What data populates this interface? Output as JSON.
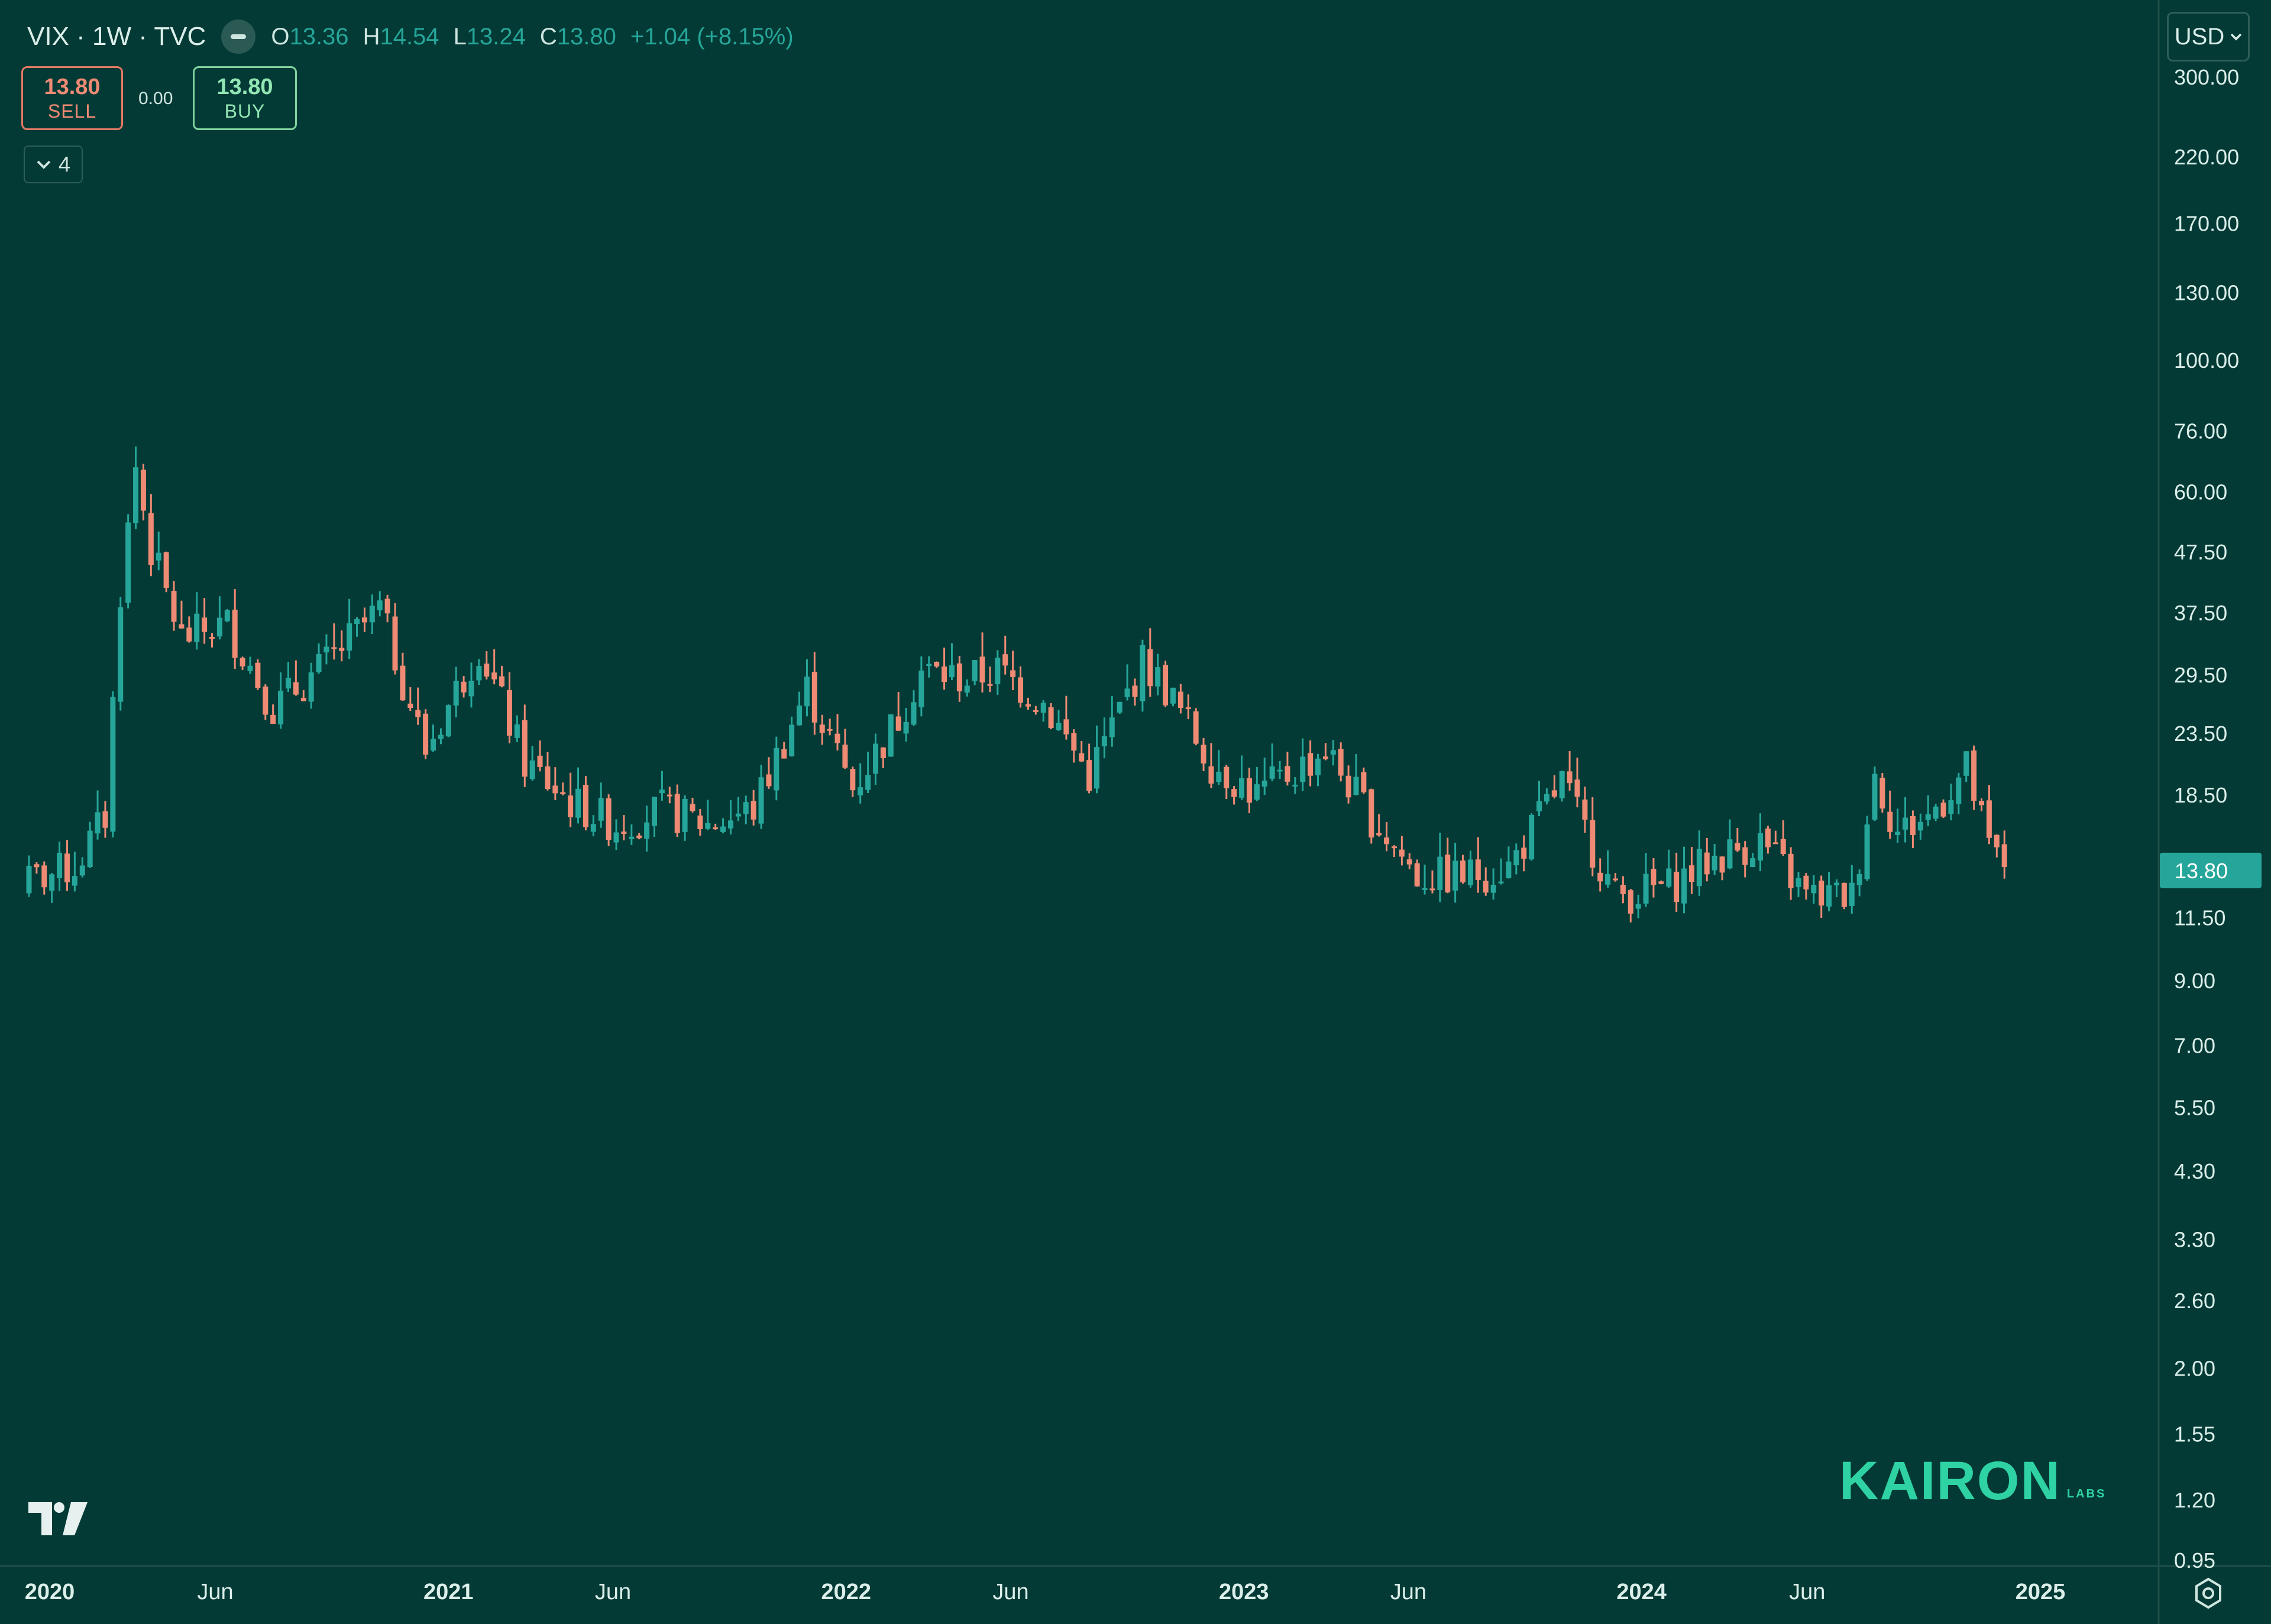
{
  "header": {
    "symbol": "VIX · 1W · TVC",
    "ohlc": {
      "o_label": "O",
      "o_value": "13.36",
      "h_label": "H",
      "h_value": "14.54",
      "l_label": "L",
      "l_value": "13.24",
      "c_label": "C",
      "c_value": "13.80",
      "change": "+1.04 (+8.15%)"
    }
  },
  "trade": {
    "sell_price": "13.80",
    "sell_label": "SELL",
    "spread": "0.00",
    "buy_price": "13.80",
    "buy_label": "BUY"
  },
  "indicators_toggle": {
    "count": "4"
  },
  "currency": "USD",
  "watermark": {
    "brand": "KAIRON",
    "sub": "LABS"
  },
  "colors": {
    "background": "#033a35",
    "up": "#26a69a",
    "down": "#ef8a74",
    "price_tag": "#26a69a"
  },
  "chart_data": {
    "type": "candlestick",
    "scale": "log",
    "interval": "1W",
    "y_ticks": [
      "300.00",
      "220.00",
      "170.00",
      "130.00",
      "100.00",
      "76.00",
      "60.00",
      "47.50",
      "37.50",
      "29.50",
      "23.50",
      "18.50",
      "11.50",
      "9.00",
      "7.00",
      "5.50",
      "4.30",
      "3.30",
      "2.60",
      "2.00",
      "1.55",
      "1.20",
      "0.95"
    ],
    "x_ticks": [
      {
        "label": "2020",
        "date": "2020-01-01",
        "bold": true
      },
      {
        "label": "Jun",
        "date": "2020-06-01",
        "bold": false
      },
      {
        "label": "2021",
        "date": "2021-01-01",
        "bold": true
      },
      {
        "label": "Jun",
        "date": "2021-06-01",
        "bold": false
      },
      {
        "label": "2022",
        "date": "2022-01-01",
        "bold": true
      },
      {
        "label": "Jun",
        "date": "2022-06-01",
        "bold": false
      },
      {
        "label": "2023",
        "date": "2023-01-01",
        "bold": true
      },
      {
        "label": "Jun",
        "date": "2023-06-01",
        "bold": false
      },
      {
        "label": "2024",
        "date": "2024-01-01",
        "bold": true
      },
      {
        "label": "Jun",
        "date": "2024-06-01",
        "bold": false
      },
      {
        "label": "2025",
        "date": "2025-01-01",
        "bold": true
      }
    ],
    "last_price": "13.80",
    "closes": {
      "x": [
        "2019-11-29",
        "2019-12-27",
        "2020-01-24",
        "2020-02-21",
        "2020-03-06",
        "2020-03-20",
        "2020-04-03",
        "2020-05-01",
        "2020-06-12",
        "2020-07-24",
        "2020-09-04",
        "2020-10-30",
        "2020-12-11",
        "2021-01-29",
        "2021-03-12",
        "2021-04-23",
        "2021-06-04",
        "2021-07-16",
        "2021-08-27",
        "2021-10-08",
        "2021-11-26",
        "2022-01-07",
        "2022-02-18",
        "2022-03-11",
        "2022-04-22",
        "2022-05-20",
        "2022-07-01",
        "2022-08-12",
        "2022-09-30",
        "2022-10-21",
        "2022-12-02",
        "2023-01-13",
        "2023-03-17",
        "2023-04-28",
        "2023-06-09",
        "2023-07-21",
        "2023-09-01",
        "2023-10-20",
        "2023-12-08",
        "2024-01-26",
        "2024-03-08",
        "2024-04-19",
        "2024-05-31",
        "2024-07-12",
        "2024-08-02",
        "2024-08-23",
        "2024-09-20",
        "2024-10-25",
        "2024-11-15",
        "2024-12-06"
      ],
      "y": [
        13.0,
        13.5,
        14.0,
        17.0,
        41.0,
        66.0,
        48.0,
        34.0,
        36.0,
        26.0,
        30.0,
        38.0,
        22.0,
        33.0,
        21.0,
        18.0,
        16.5,
        17.5,
        16.5,
        17.5,
        28.0,
        19.0,
        25.0,
        30.0,
        29.0,
        30.0,
        26.5,
        20.0,
        31.0,
        28.0,
        21.0,
        18.5,
        22.0,
        17.0,
        13.5,
        13.5,
        14.0,
        19.5,
        12.5,
        13.0,
        14.5,
        15.5,
        12.5,
        12.5,
        20.0,
        16.0,
        17.0,
        20.5,
        15.0,
        13.8
      ]
    }
  }
}
